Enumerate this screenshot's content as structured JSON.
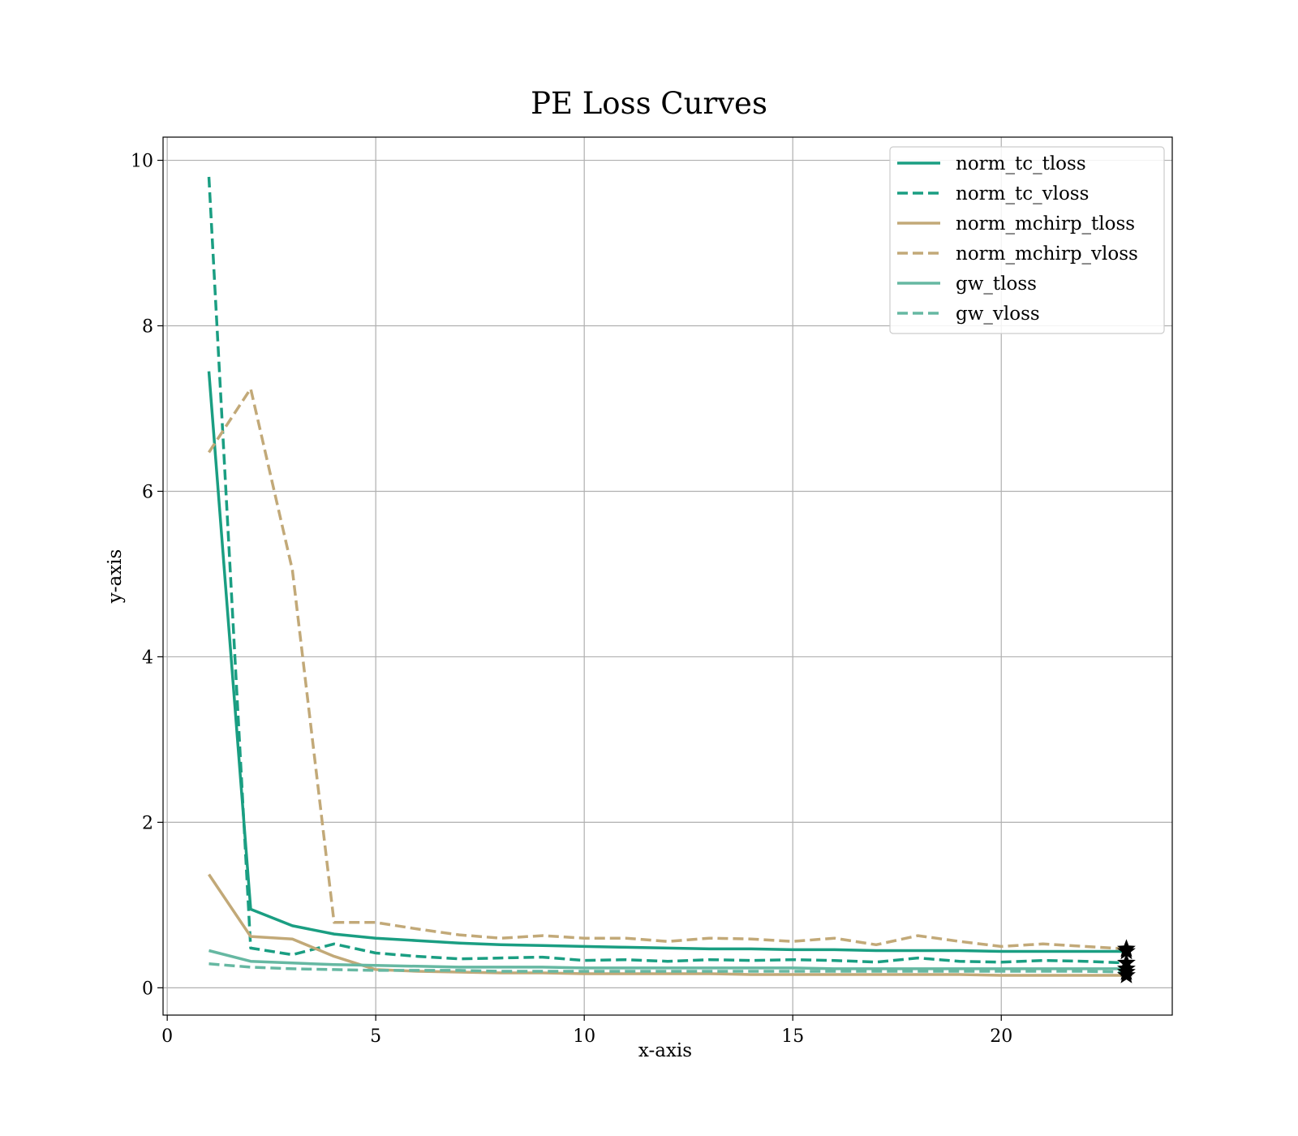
{
  "chart_data": {
    "type": "line",
    "title": "PE Loss Curves",
    "xlabel": "x-axis",
    "ylabel": "y-axis",
    "xlim": [
      -0.1,
      24.1
    ],
    "ylim": [
      -0.33,
      10.28
    ],
    "xticks": [
      0,
      5,
      10,
      15,
      20
    ],
    "yticks": [
      0,
      2,
      4,
      6,
      8,
      10
    ],
    "xtick_labels": [
      "0",
      "5",
      "10",
      "15",
      "20"
    ],
    "ytick_labels": [
      "0",
      "2",
      "4",
      "6",
      "8",
      "10"
    ],
    "grid": true,
    "legend_position": "top-right",
    "x": [
      1,
      2,
      3,
      4,
      5,
      6,
      7,
      8,
      9,
      10,
      11,
      12,
      13,
      14,
      15,
      16,
      17,
      18,
      19,
      20,
      21,
      22,
      23
    ],
    "series": [
      {
        "name": "norm_tc_tloss",
        "color": "#1a9e82",
        "dash": "solid",
        "width": 3.5,
        "values": [
          7.45,
          0.95,
          0.75,
          0.65,
          0.6,
          0.57,
          0.54,
          0.52,
          0.51,
          0.5,
          0.49,
          0.48,
          0.47,
          0.47,
          0.46,
          0.46,
          0.45,
          0.45,
          0.45,
          0.44,
          0.44,
          0.44,
          0.44
        ]
      },
      {
        "name": "norm_tc_vloss",
        "color": "#1a9e82",
        "dash": "dashed",
        "width": 3.5,
        "values": [
          9.8,
          0.48,
          0.4,
          0.53,
          0.42,
          0.38,
          0.35,
          0.36,
          0.37,
          0.33,
          0.34,
          0.32,
          0.34,
          0.33,
          0.34,
          0.33,
          0.31,
          0.36,
          0.32,
          0.31,
          0.33,
          0.32,
          0.3
        ]
      },
      {
        "name": "norm_mchirp_tloss",
        "color": "#c2a978",
        "dash": "solid",
        "width": 3.5,
        "values": [
          1.37,
          0.62,
          0.59,
          0.38,
          0.22,
          0.2,
          0.19,
          0.18,
          0.18,
          0.17,
          0.17,
          0.17,
          0.17,
          0.16,
          0.16,
          0.16,
          0.16,
          0.16,
          0.16,
          0.15,
          0.15,
          0.15,
          0.15
        ]
      },
      {
        "name": "norm_mchirp_vloss",
        "color": "#c2a978",
        "dash": "dashed",
        "width": 3.5,
        "values": [
          6.47,
          7.24,
          5.05,
          0.79,
          0.79,
          0.71,
          0.64,
          0.6,
          0.63,
          0.6,
          0.6,
          0.56,
          0.6,
          0.59,
          0.56,
          0.6,
          0.52,
          0.63,
          0.56,
          0.5,
          0.53,
          0.5,
          0.47
        ]
      },
      {
        "name": "gw_tloss",
        "color": "#66b8a2",
        "dash": "solid",
        "width": 3.5,
        "values": [
          0.45,
          0.32,
          0.3,
          0.28,
          0.27,
          0.26,
          0.25,
          0.25,
          0.25,
          0.24,
          0.24,
          0.24,
          0.24,
          0.24,
          0.24,
          0.23,
          0.23,
          0.23,
          0.23,
          0.23,
          0.23,
          0.23,
          0.23
        ]
      },
      {
        "name": "gw_vloss",
        "color": "#66b8a2",
        "dash": "dashed",
        "width": 3.5,
        "values": [
          0.29,
          0.25,
          0.23,
          0.22,
          0.21,
          0.21,
          0.21,
          0.2,
          0.2,
          0.2,
          0.2,
          0.2,
          0.2,
          0.2,
          0.2,
          0.2,
          0.2,
          0.2,
          0.2,
          0.2,
          0.2,
          0.2,
          0.19
        ]
      }
    ],
    "final_markers": {
      "symbol": "star",
      "color": "#000000",
      "x": 23
    }
  }
}
